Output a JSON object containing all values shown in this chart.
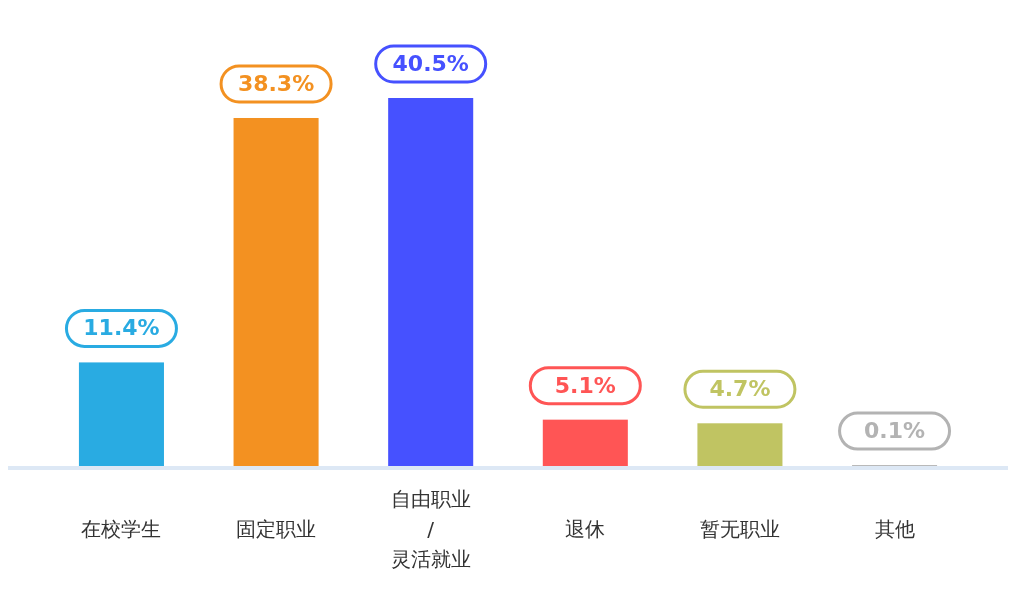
{
  "chart_data": {
    "type": "bar",
    "categories": [
      "在校学生",
      "固定职业",
      "自由职业\n/\n灵活就业",
      "退休",
      "暂无职业",
      "其他"
    ],
    "values": [
      11.4,
      38.3,
      40.5,
      5.1,
      4.7,
      0.1
    ],
    "value_labels": [
      "11.4%",
      "38.3%",
      "40.5%",
      "5.1%",
      "4.7%",
      "0.1%"
    ],
    "colors": [
      "#29abe2",
      "#f39121",
      "#4651ff",
      "#ff5555",
      "#c0c462",
      "#b3b3b3"
    ]
  }
}
